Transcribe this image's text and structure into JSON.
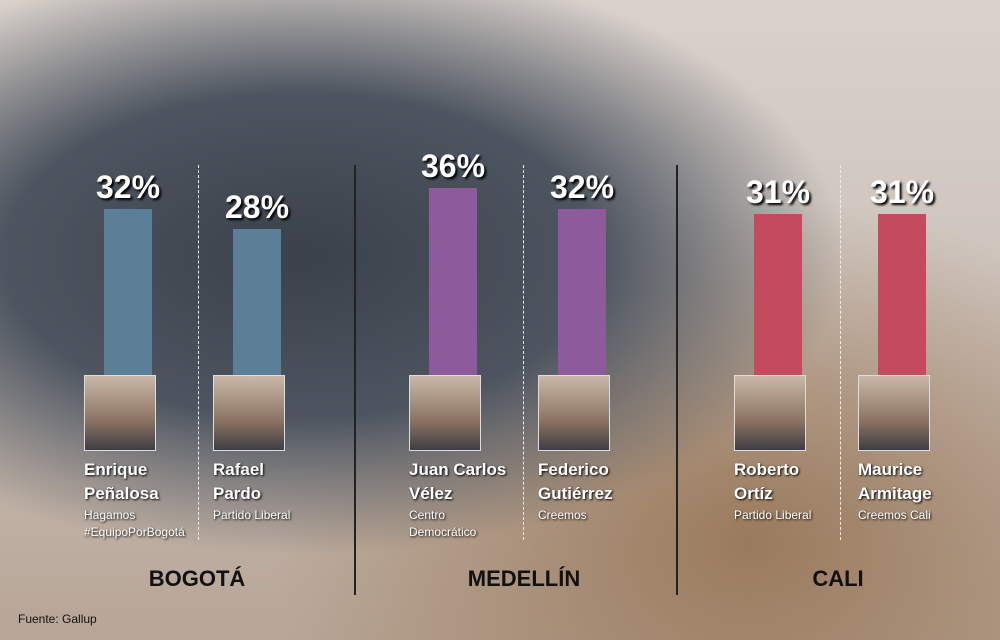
{
  "chart_data": {
    "type": "bar",
    "groups": [
      {
        "name": "BOGOTÁ",
        "color": "#5a7f96",
        "categories": [
          "Enrique Peñalosa",
          "Rafael Pardo"
        ],
        "parties": [
          "Hagamos #EquipoPorBogotá",
          "Partido Liberal"
        ],
        "values": [
          32,
          28
        ],
        "value_labels": [
          "32%",
          "28%"
        ]
      },
      {
        "name": "MEDELLÍN",
        "color": "#8d5a9c",
        "categories": [
          "Juan Carlos Vélez",
          "Federico Gutiérrez"
        ],
        "parties": [
          "Centro Democrático",
          "Creemos"
        ],
        "values": [
          36,
          32
        ],
        "value_labels": [
          "36%",
          "32%"
        ]
      },
      {
        "name": "CALI",
        "color": "#c44a5e",
        "categories": [
          "Roberto Ortíz",
          "Maurice Armitage"
        ],
        "parties": [
          "Partido Liberal",
          "Creemos Cali"
        ],
        "values": [
          31,
          31
        ],
        "value_labels": [
          "31%",
          "31%"
        ]
      }
    ],
    "source": "Fuente: Gallup"
  }
}
